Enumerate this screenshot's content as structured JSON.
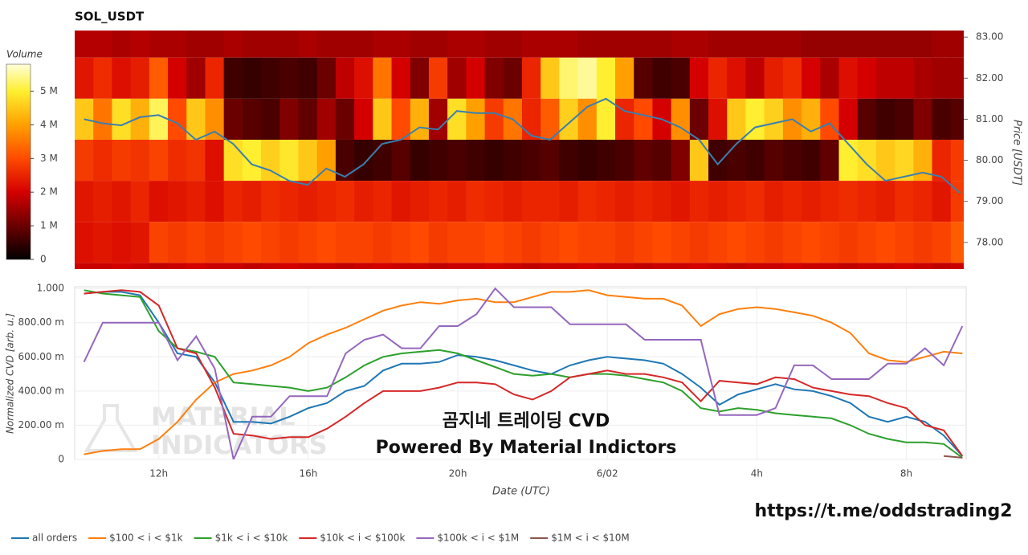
{
  "chart_data": [
    {
      "type": "heatmap",
      "title": "SOL_USDT",
      "x": [
        10,
        10.5,
        11,
        11.5,
        12,
        12.5,
        13,
        13.5,
        14,
        14.5,
        15,
        15.5,
        16,
        16.5,
        17,
        17.5,
        18,
        18.5,
        19,
        19.5,
        20,
        20.5,
        21,
        21.5,
        22,
        22.5,
        23,
        23.5,
        24,
        24.5,
        25,
        25.5,
        26,
        26.5,
        27,
        27.5,
        28,
        28.5,
        29,
        29.5,
        30,
        30.5,
        31,
        31.5,
        32,
        32.5,
        33,
        33.5
      ],
      "xlim": [
        9.75,
        33.6
      ],
      "y": [
        83,
        82,
        81,
        80,
        79,
        78,
        77
      ],
      "z": [
        [
          1.7,
          1.7,
          1.6,
          1.7,
          1.6,
          1.6,
          1.5,
          1.5,
          1.6,
          1.5,
          1.5,
          1.5,
          1.6,
          1.5,
          1.5,
          1.5,
          1.6,
          1.6,
          1.5,
          1.5,
          1.6,
          1.6,
          1.5,
          1.5,
          1.6,
          1.6,
          1.6,
          1.5,
          1.5,
          1.5,
          1.5,
          1.5,
          1.6,
          1.6,
          1.5,
          1.5,
          1.5,
          1.5,
          1.5,
          1.4,
          1.4,
          1.4,
          1.4,
          1.4,
          1.4,
          1.4,
          1.5,
          1.5
        ],
        [
          2.3,
          2.6,
          2.2,
          2.4,
          3.2,
          2.0,
          1.5,
          2.5,
          0.6,
          0.5,
          0.6,
          0.7,
          0.6,
          1.0,
          1.8,
          2.2,
          3.5,
          2.0,
          1.2,
          2.8,
          1.5,
          2.0,
          1.2,
          1.0,
          2.5,
          4.5,
          5.3,
          5.5,
          5.0,
          4.0,
          0.8,
          0.6,
          0.7,
          2.0,
          2.5,
          2.2,
          1.8,
          2.4,
          2.6,
          2.0,
          1.6,
          2.2,
          2.0,
          1.8,
          1.8,
          1.6,
          1.5,
          1.5
        ],
        [
          4.5,
          3.5,
          4.8,
          4.2,
          5.2,
          3.0,
          4.5,
          3.8,
          1.0,
          0.8,
          0.7,
          1.2,
          0.9,
          1.5,
          1.0,
          2.0,
          4.5,
          3.0,
          4.2,
          1.5,
          4.8,
          4.0,
          2.8,
          3.5,
          2.5,
          3.2,
          4.6,
          3.8,
          5.0,
          2.5,
          3.0,
          2.0,
          3.8,
          1.0,
          2.2,
          4.5,
          5.0,
          4.6,
          3.8,
          4.2,
          3.0,
          2.0,
          0.8,
          0.6,
          0.7,
          1.2,
          0.7,
          0.8
        ],
        [
          2.8,
          2.6,
          2.8,
          2.7,
          2.9,
          2.6,
          2.7,
          2.2,
          4.8,
          5.0,
          4.6,
          4.9,
          4.5,
          4.0,
          0.7,
          0.5,
          0.6,
          0.8,
          0.5,
          0.6,
          0.7,
          0.6,
          0.5,
          0.6,
          0.7,
          0.8,
          0.6,
          0.5,
          0.6,
          0.7,
          0.9,
          0.8,
          1.2,
          4.5,
          0.6,
          0.7,
          0.6,
          0.8,
          0.7,
          0.6,
          0.9,
          5.0,
          4.8,
          4.5,
          4.7,
          4.2,
          2.5,
          2.8
        ],
        [
          2.3,
          2.4,
          2.3,
          2.5,
          2.2,
          2.3,
          2.4,
          2.2,
          2.5,
          2.4,
          2.6,
          2.5,
          2.4,
          2.5,
          2.6,
          2.4,
          2.5,
          2.3,
          2.4,
          2.5,
          2.4,
          2.6,
          2.5,
          2.4,
          2.5,
          2.5,
          2.4,
          2.6,
          2.5,
          2.4,
          2.5,
          2.4,
          2.3,
          2.5,
          2.4,
          2.5,
          2.6,
          2.4,
          2.5,
          2.4,
          2.5,
          2.6,
          2.5,
          2.4,
          2.6,
          2.5,
          2.3,
          2.8
        ],
        [
          2.2,
          2.3,
          2.2,
          2.3,
          2.9,
          2.8,
          2.9,
          2.8,
          2.9,
          3.0,
          2.9,
          2.8,
          2.9,
          3.0,
          2.9,
          2.9,
          2.8,
          2.9,
          3.0,
          2.8,
          2.9,
          2.9,
          3.0,
          2.9,
          2.8,
          2.9,
          3.0,
          2.9,
          2.9,
          2.8,
          2.9,
          3.0,
          2.9,
          2.8,
          2.9,
          3.0,
          2.9,
          2.8,
          2.9,
          3.0,
          2.9,
          2.8,
          2.9,
          3.0,
          2.9,
          2.8,
          2.9,
          3.2
        ],
        [
          1.9,
          1.9,
          2.0,
          1.9,
          1.8,
          1.9,
          2.0,
          1.9,
          1.9,
          1.8,
          1.9,
          2.0,
          1.9,
          1.9,
          1.8,
          1.9,
          2.0,
          1.9,
          1.9,
          1.8,
          1.9,
          1.9,
          2.0,
          1.9,
          1.8,
          1.9,
          1.9,
          2.0,
          1.9,
          1.9,
          1.8,
          1.9,
          1.9,
          2.0,
          1.9,
          1.8,
          1.9,
          1.9,
          2.0,
          1.9,
          1.9,
          1.8,
          1.9,
          1.9,
          2.0,
          1.9,
          1.8,
          1.9
        ]
      ],
      "zlim": [
        0,
        5.8
      ],
      "colorbar_title": "Volume",
      "zticks": [
        0,
        {
          "value": 1,
          "label": "1 M"
        },
        {
          "value": 2,
          "label": "2 M"
        },
        {
          "value": 3,
          "label": "3 M"
        },
        {
          "value": 4,
          "label": "4 M"
        },
        {
          "value": 5,
          "label": "5 M"
        }
      ],
      "colorscale": [
        [
          0,
          "#000000"
        ],
        [
          1,
          "#6b0000"
        ],
        [
          2,
          "#d40000"
        ],
        [
          3,
          "#ff4a00"
        ],
        [
          4,
          "#ffa000"
        ],
        [
          5,
          "#ffef30"
        ],
        [
          5.8,
          "#ffffd8"
        ]
      ],
      "y2lim": [
        77.35,
        83.16
      ],
      "y2ticks": [
        {
          "value": 78,
          "label": "78.00"
        },
        {
          "value": 79,
          "label": "79.00"
        },
        {
          "value": 80,
          "label": "80.00"
        },
        {
          "value": 81,
          "label": "81.00"
        },
        {
          "value": 82,
          "label": "82.00"
        },
        {
          "value": 83,
          "label": "83.00"
        }
      ],
      "y2label": "Price [USDT]",
      "price": {
        "color": "#3a7fb0",
        "axis": "y2",
        "values": [
          81.0,
          80.9,
          80.85,
          81.05,
          81.1,
          80.9,
          80.5,
          80.7,
          80.4,
          79.9,
          79.75,
          79.5,
          79.4,
          79.8,
          79.6,
          79.9,
          80.4,
          80.5,
          80.8,
          80.75,
          81.2,
          81.15,
          81.15,
          81.0,
          80.6,
          80.5,
          80.9,
          81.3,
          81.5,
          81.2,
          81.1,
          81.0,
          80.8,
          80.5,
          79.9,
          80.4,
          80.8,
          80.9,
          81.0,
          80.7,
          80.9,
          80.4,
          79.9,
          79.5,
          79.6,
          79.7,
          79.6,
          79.2
        ]
      }
    },
    {
      "type": "line",
      "x": [
        10,
        10.5,
        11,
        11.5,
        12,
        12.5,
        13,
        13.5,
        14,
        14.5,
        15,
        15.5,
        16,
        16.5,
        17,
        17.5,
        18,
        18.5,
        19,
        19.5,
        20,
        20.5,
        21,
        21.5,
        22,
        22.5,
        23,
        23.5,
        24,
        24.5,
        25,
        25.5,
        26,
        26.5,
        27,
        27.5,
        28,
        28.5,
        29,
        29.5,
        30,
        30.5,
        31,
        31.5,
        32,
        32.5,
        33,
        33.5
      ],
      "xlim": [
        9.75,
        33.6
      ],
      "xticks": [
        {
          "value": 12,
          "label": "12h"
        },
        {
          "value": 16,
          "label": "16h"
        },
        {
          "value": 20,
          "label": "20h"
        },
        {
          "value": 24,
          "label": "6/02"
        },
        {
          "value": 28,
          "label": "4h"
        },
        {
          "value": 32,
          "label": "8h"
        }
      ],
      "xlabel": "Date (UTC)",
      "ylim": [
        0,
        1.01
      ],
      "yticks": [
        0,
        {
          "value": 0.2,
          "label": "200.00 m"
        },
        {
          "value": 0.4,
          "label": "400.00 m"
        },
        {
          "value": 0.6,
          "label": "600.00 m"
        },
        {
          "value": 0.8,
          "label": "800.00 m"
        },
        {
          "value": 1,
          "label": "1.000"
        }
      ],
      "ylabel": "Normalized CVD [arb. u.]",
      "grid": true,
      "legend": "bottom",
      "series": [
        {
          "name": "all orders",
          "color": "#1f77b4",
          "values": [
            0.97,
            0.98,
            0.98,
            0.96,
            0.8,
            0.62,
            0.6,
            0.45,
            0.22,
            0.22,
            0.21,
            0.25,
            0.3,
            0.33,
            0.4,
            0.43,
            0.52,
            0.56,
            0.56,
            0.57,
            0.61,
            0.6,
            0.58,
            0.55,
            0.52,
            0.5,
            0.55,
            0.58,
            0.6,
            0.59,
            0.58,
            0.56,
            0.5,
            0.42,
            0.32,
            0.38,
            0.41,
            0.44,
            0.41,
            0.4,
            0.37,
            0.33,
            0.25,
            0.22,
            0.25,
            0.22,
            0.14,
            0.02
          ]
        },
        {
          "name": "$100 < i < $1k",
          "color": "#ff7f0e",
          "values": [
            0.03,
            0.05,
            0.06,
            0.06,
            0.12,
            0.22,
            0.35,
            0.45,
            0.5,
            0.52,
            0.55,
            0.6,
            0.68,
            0.73,
            0.77,
            0.82,
            0.87,
            0.9,
            0.92,
            0.91,
            0.93,
            0.94,
            0.92,
            0.92,
            0.95,
            0.98,
            0.98,
            0.99,
            0.96,
            0.95,
            0.94,
            0.94,
            0.9,
            0.78,
            0.85,
            0.88,
            0.89,
            0.88,
            0.86,
            0.84,
            0.8,
            0.74,
            0.62,
            0.58,
            0.57,
            0.6,
            0.63,
            0.62
          ]
        },
        {
          "name": "$1k < i < $10k",
          "color": "#2ca02c",
          "values": [
            0.99,
            0.97,
            0.96,
            0.95,
            0.75,
            0.65,
            0.63,
            0.6,
            0.45,
            0.44,
            0.43,
            0.42,
            0.4,
            0.42,
            0.48,
            0.55,
            0.6,
            0.62,
            0.63,
            0.64,
            0.62,
            0.58,
            0.54,
            0.5,
            0.49,
            0.5,
            0.48,
            0.5,
            0.5,
            0.49,
            0.47,
            0.45,
            0.4,
            0.3,
            0.28,
            0.3,
            0.29,
            0.27,
            0.26,
            0.25,
            0.24,
            0.2,
            0.15,
            0.12,
            0.1,
            0.1,
            0.09,
            0.01
          ]
        },
        {
          "name": "$10k < i < $100k",
          "color": "#d62728",
          "values": [
            0.97,
            0.98,
            0.99,
            0.98,
            0.9,
            0.65,
            0.62,
            0.42,
            0.15,
            0.14,
            0.12,
            0.13,
            0.13,
            0.18,
            0.25,
            0.33,
            0.4,
            0.4,
            0.4,
            0.42,
            0.45,
            0.45,
            0.44,
            0.38,
            0.35,
            0.4,
            0.48,
            0.5,
            0.52,
            0.5,
            0.5,
            0.48,
            0.45,
            0.34,
            0.46,
            0.45,
            0.44,
            0.48,
            0.47,
            0.42,
            0.4,
            0.38,
            0.37,
            0.33,
            0.3,
            0.2,
            0.17,
            0.02
          ]
        },
        {
          "name": "$100k < i < $1M",
          "color": "#9467bd",
          "values": [
            0.57,
            0.8,
            0.8,
            0.8,
            0.8,
            0.58,
            0.72,
            0.53,
            0,
            0.25,
            0.25,
            0.37,
            0.37,
            0.37,
            0.62,
            0.7,
            0.73,
            0.65,
            0.65,
            0.78,
            0.78,
            0.85,
            1.0,
            0.89,
            0.89,
            0.89,
            0.79,
            0.79,
            0.79,
            0.79,
            0.7,
            0.7,
            0.7,
            0.7,
            0.26,
            0.26,
            0.26,
            0.3,
            0.55,
            0.55,
            0.47,
            0.47,
            0.47,
            0.56,
            0.56,
            0.65,
            0.55,
            0.78
          ]
        },
        {
          "name": "$1M < i < $10M",
          "color": "#8c564b",
          "x": [
            33.0,
            33.5
          ],
          "values": [
            0.02,
            0.01
          ]
        }
      ],
      "watermark": [
        "MATERIAL",
        "INDICATORS"
      ],
      "annotations": [
        "곰지네 트레이딩 CVD",
        "Powered By Material Indictors"
      ]
    }
  ],
  "link": "https://t.me/oddstrading2"
}
